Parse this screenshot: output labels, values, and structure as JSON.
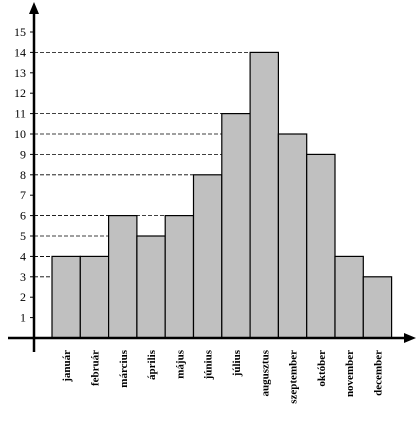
{
  "chart_data": {
    "type": "bar",
    "categories": [
      "január",
      "február",
      "március",
      "április",
      "május",
      "június",
      "július",
      "augusztus",
      "szeptember",
      "október",
      "november",
      "december"
    ],
    "values": [
      4,
      4,
      6,
      5,
      6,
      8,
      11,
      14,
      10,
      9,
      4,
      3
    ],
    "yticks": [
      1,
      2,
      3,
      4,
      5,
      6,
      7,
      8,
      9,
      10,
      11,
      12,
      13,
      14,
      15
    ],
    "ylim": [
      0,
      15
    ],
    "title": "",
    "xlabel": "",
    "ylabel": "",
    "grid": "dashed horizontal lines from y-axis to top of each bar",
    "legend": "none",
    "colors": {
      "bar": "#c0c0c0",
      "stroke": "#000000",
      "grid": "#000000"
    }
  }
}
